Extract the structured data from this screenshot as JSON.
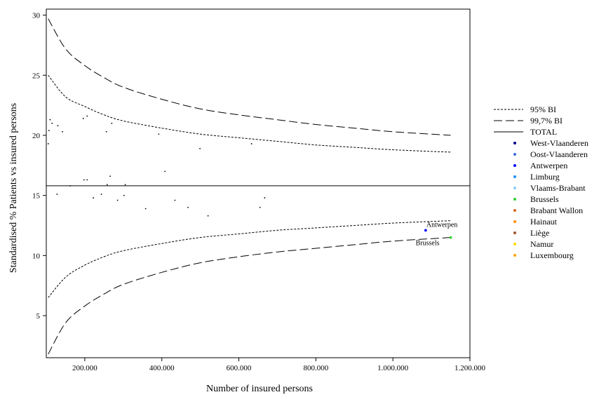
{
  "chart_data": {
    "type": "scatter",
    "xlabel": "Number of insured persons",
    "ylabel": "Standardised % Patients vs insured persons",
    "xlim": [
      100000,
      1200000
    ],
    "ylim": [
      1.5,
      30.5
    ],
    "x_ticks": [
      200000,
      400000,
      600000,
      800000,
      1000000,
      1200000
    ],
    "x_tick_labels": [
      "200.000",
      "400.000",
      "600.000",
      "800.000",
      "1.000.000",
      "1.200.000"
    ],
    "y_ticks": [
      5,
      10,
      15,
      20,
      25,
      30
    ],
    "y_tick_labels": [
      "5",
      "10",
      "15",
      "20",
      "25",
      "30"
    ],
    "total": 15.8,
    "legend_position": "right",
    "grid": false,
    "bands": [
      {
        "label": "95% BI",
        "style": "dotted",
        "x": [
          105000,
          150000,
          200000,
          250000,
          300000,
          400000,
          500000,
          600000,
          700000,
          800000,
          900000,
          1000000,
          1150000
        ],
        "upper": [
          25.0,
          23.2,
          22.4,
          21.7,
          21.2,
          20.6,
          20.1,
          19.8,
          19.5,
          19.2,
          19.0,
          18.8,
          18.6
        ],
        "lower": [
          6.5,
          8.2,
          9.2,
          9.9,
          10.4,
          11.0,
          11.5,
          11.8,
          12.1,
          12.3,
          12.5,
          12.7,
          12.9
        ]
      },
      {
        "label": "99,7% BI",
        "style": "dashed",
        "x": [
          105000,
          150000,
          200000,
          250000,
          300000,
          400000,
          500000,
          600000,
          700000,
          800000,
          900000,
          1000000,
          1150000
        ],
        "upper": [
          29.7,
          27.2,
          25.8,
          24.8,
          24.0,
          23.0,
          22.2,
          21.7,
          21.3,
          20.9,
          20.6,
          20.3,
          20.0
        ],
        "lower": [
          1.8,
          4.4,
          5.8,
          6.8,
          7.6,
          8.6,
          9.4,
          9.9,
          10.3,
          10.6,
          10.9,
          11.2,
          11.5
        ]
      }
    ],
    "total_label": "TOTAL",
    "series": [
      {
        "name": "West-Vlaanderen",
        "color": "#00008b"
      },
      {
        "name": "Oost-Vlaanderen",
        "color": "#4169e1"
      },
      {
        "name": "Antwerpen",
        "color": "#0000ff"
      },
      {
        "name": "Limburg",
        "color": "#1e90ff"
      },
      {
        "name": "Vlaams-Brabant",
        "color": "#87cefa"
      },
      {
        "name": "Brussels",
        "color": "#32cd32"
      },
      {
        "name": "Brabant Wallon",
        "color": "#d2691e"
      },
      {
        "name": "Hainaut",
        "color": "#ff8c00"
      },
      {
        "name": "Liège",
        "color": "#a0522d"
      },
      {
        "name": "Namur",
        "color": "#ffd700"
      },
      {
        "name": "Luxembourg",
        "color": "#ffa500"
      }
    ],
    "highlighted_points": [
      {
        "label": "Antwerpen",
        "x": 1085000,
        "y": 12.1,
        "color": "#0000ff"
      },
      {
        "label": "Brussels",
        "x": 1150000,
        "y": 11.5,
        "color": "#32cd32"
      }
    ],
    "small_points": [
      [
        105000,
        19.3
      ],
      [
        107000,
        20.4
      ],
      [
        110000,
        21.3
      ],
      [
        115000,
        21.0
      ],
      [
        128000,
        15.1
      ],
      [
        130000,
        20.8
      ],
      [
        142000,
        20.3
      ],
      [
        162000,
        15.8
      ],
      [
        196000,
        21.4
      ],
      [
        198000,
        16.3
      ],
      [
        206000,
        21.6
      ],
      [
        206000,
        16.3
      ],
      [
        222000,
        14.8
      ],
      [
        243000,
        15.1
      ],
      [
        256000,
        20.3
      ],
      [
        258000,
        15.9
      ],
      [
        266000,
        16.6
      ],
      [
        270000,
        21.0
      ],
      [
        285000,
        14.6
      ],
      [
        302000,
        15.0
      ],
      [
        305000,
        15.9
      ],
      [
        358000,
        13.9
      ],
      [
        392000,
        20.1
      ],
      [
        408000,
        17.0
      ],
      [
        434000,
        14.6
      ],
      [
        468000,
        14.0
      ],
      [
        499000,
        18.9
      ],
      [
        520000,
        13.3
      ],
      [
        633000,
        19.3
      ],
      [
        655000,
        14.0
      ],
      [
        667000,
        14.8
      ]
    ]
  }
}
